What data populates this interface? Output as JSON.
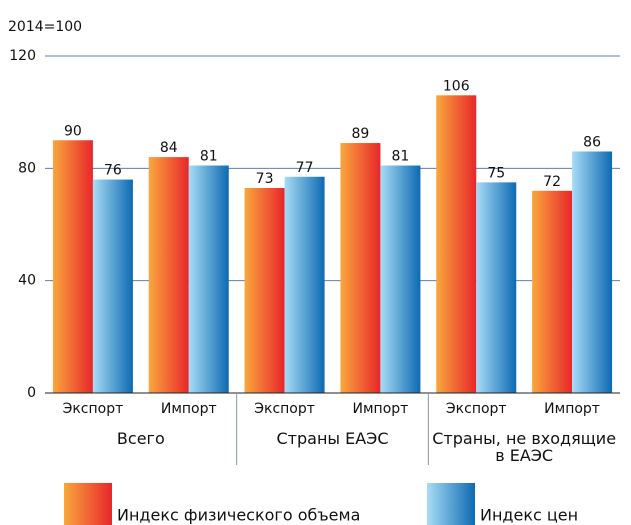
{
  "chart_data": {
    "type": "bar",
    "unit_label": "2014=100",
    "categories": [
      "Экспорт",
      "Импорт",
      "Экспорт",
      "Импорт",
      "Экспорт",
      "Импорт"
    ],
    "groups": [
      "Всего",
      "Страны ЕАЭС",
      "Страны, не входящие в ЕАЭС"
    ],
    "series": [
      {
        "name": "Индекс физического объема",
        "color": "#e8262b",
        "values": [
          90,
          84,
          73,
          89,
          106,
          72
        ]
      },
      {
        "name": "Индекс цен",
        "color": "#0d6ab2",
        "values": [
          76,
          81,
          77,
          81,
          75,
          86
        ]
      }
    ],
    "ylim": [
      0,
      120
    ],
    "yticks": [
      0,
      40,
      80,
      120
    ],
    "grid": true
  }
}
